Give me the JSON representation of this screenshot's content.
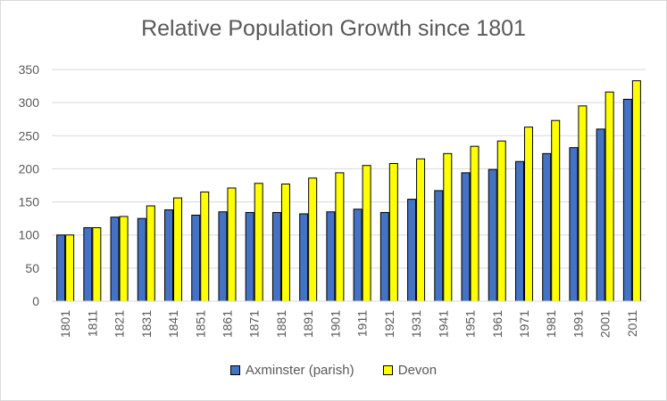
{
  "chart_data": {
    "type": "bar",
    "title": "Relative Population Growth since 1801",
    "xlabel": "",
    "ylabel": "",
    "ylim": [
      0,
      350
    ],
    "yticks": [
      0,
      50,
      100,
      150,
      200,
      250,
      300,
      350
    ],
    "grid": true,
    "legend_position": "bottom",
    "categories": [
      "1801",
      "1811",
      "1821",
      "1831",
      "1841",
      "1851",
      "1861",
      "1871",
      "1881",
      "1891",
      "1901",
      "1911",
      "1921",
      "1931",
      "1941",
      "1951",
      "1961",
      "1971",
      "1981",
      "1991",
      "2001",
      "2011"
    ],
    "series": [
      {
        "name": "Axminster (parish)",
        "color": "#4472c4",
        "values": [
          100,
          111,
          127,
          125,
          138,
          130,
          135,
          134,
          134,
          132,
          135,
          139,
          134,
          154,
          167,
          194,
          199,
          211,
          223,
          232,
          260,
          305
        ]
      },
      {
        "name": "Devon",
        "color": "#ffff00",
        "values": [
          100,
          111,
          128,
          144,
          156,
          165,
          171,
          178,
          177,
          186,
          194,
          205,
          208,
          215,
          223,
          234,
          242,
          263,
          273,
          295,
          316,
          333
        ]
      }
    ]
  }
}
